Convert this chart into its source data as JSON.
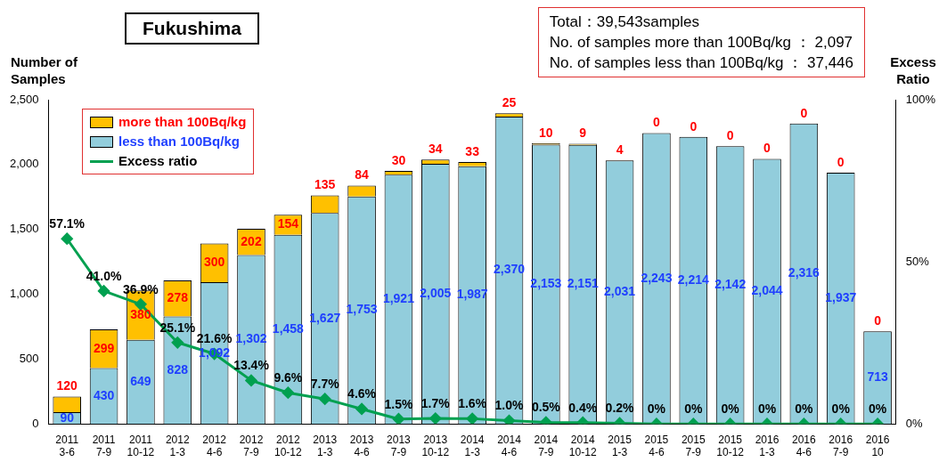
{
  "chart_data": {
    "type": "bar",
    "title": "Fukushima",
    "ylabel": "Number of Samples",
    "y2label": "Excess Ratio",
    "annotations": [
      "Total：39,543samples",
      "No. of samples more than 100Bq/kg ： 2,097",
      "No. of samples less than 100Bq/kg ： 37,446"
    ],
    "categories": [
      "2011 3-6",
      "2011 7-9",
      "2011 10-12",
      "2012 1-3",
      "2012 4-6",
      "2012 7-9",
      "2012 10-12",
      "2013 1-3",
      "2013 4-6",
      "2013 7-9",
      "2013 10-12",
      "2014 1-3",
      "2014 4-6",
      "2014 7-9",
      "2014 10-12",
      "2015 1-3",
      "2015 4-6",
      "2015 7-9",
      "2015 10-12",
      "2016 1-3",
      "2016 4-6",
      "2016 7-9",
      "2016 10"
    ],
    "stacked": true,
    "series": [
      {
        "name": "less than 100Bq/kg",
        "color": "#92cddc",
        "values": [
          90,
          430,
          649,
          828,
          1092,
          1302,
          1458,
          1627,
          1753,
          1921,
          2005,
          1987,
          2370,
          2153,
          2151,
          2031,
          2243,
          2214,
          2142,
          2044,
          2316,
          1937,
          713
        ],
        "value_labels": [
          "90",
          "430",
          "649",
          "828",
          "1,092",
          "1,302",
          "1,458",
          "1,627",
          "1,753",
          "1,921",
          "2,005",
          "1,987",
          "2,370",
          "2,153",
          "2,151",
          "2,031",
          "2,243",
          "2,214",
          "2,142",
          "2,044",
          "2,316",
          "1,937",
          "713"
        ]
      },
      {
        "name": "more than 100Bq/kg",
        "color": "#ffc000",
        "values": [
          120,
          299,
          380,
          278,
          300,
          202,
          154,
          135,
          84,
          30,
          34,
          33,
          25,
          10,
          9,
          4,
          0,
          0,
          0,
          0,
          0,
          0,
          0
        ],
        "value_labels": [
          "120",
          "299",
          "380",
          "278",
          "300",
          "202",
          "154",
          "135",
          "84",
          "30",
          "34",
          "33",
          "25",
          "10",
          "9",
          "4",
          "0",
          "0",
          "0",
          "0",
          "0",
          "0",
          "0"
        ]
      },
      {
        "name": "Excess ratio",
        "type": "line",
        "axis": "y2",
        "color": "#00a050",
        "values": [
          57.1,
          41.0,
          36.9,
          25.1,
          21.6,
          13.4,
          9.6,
          7.7,
          4.6,
          1.5,
          1.7,
          1.6,
          1.0,
          0.5,
          0.4,
          0.2,
          0,
          0,
          0,
          0,
          0,
          0,
          0
        ],
        "value_labels": [
          "57.1%",
          "41.0%",
          "36.9%",
          "25.1%",
          "21.6%",
          "13.4%",
          "9.6%",
          "7.7%",
          "4.6%",
          "1.5%",
          "1.7%",
          "1.6%",
          "1.0%",
          "0.5%",
          "0.4%",
          "0.2%",
          "0%",
          "0%",
          "0%",
          "0%",
          "0%",
          "0%",
          "0%"
        ]
      }
    ],
    "ylim": [
      0,
      2500
    ],
    "yticks": [
      {
        "value": 0,
        "label": "0"
      },
      {
        "value": 500,
        "label": "500"
      },
      {
        "value": 1000,
        "label": "1,000"
      },
      {
        "value": 1500,
        "label": "1,500"
      },
      {
        "value": 2000,
        "label": "2,000"
      },
      {
        "value": 2500,
        "label": "2,500"
      }
    ],
    "y2lim": [
      0,
      100
    ],
    "y2ticks": [
      {
        "value": 0,
        "label": "0%"
      },
      {
        "value": 50,
        "label": "50%"
      },
      {
        "value": 100,
        "label": "100%"
      }
    ],
    "marker": "diamond",
    "legend": "top left",
    "grid": false
  }
}
